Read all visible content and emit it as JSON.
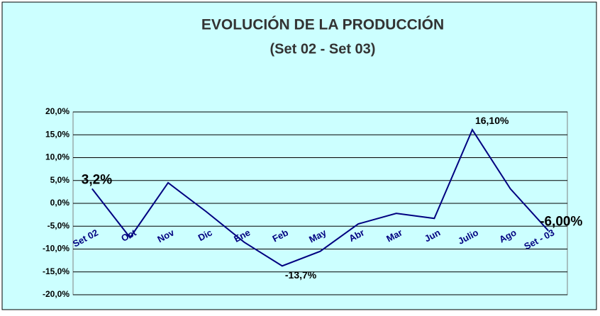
{
  "chart_data": {
    "type": "line",
    "title": "EVOLUCIÓN   DE LA  PRODUCCIÓN",
    "subtitle": "(Set 02 - Set 03)",
    "categories": [
      "Set 02",
      "Oct",
      "Nov",
      "Dic",
      "Ene",
      "Feb",
      "May",
      "Abr",
      "Mar",
      "Jun",
      "Julio",
      "Ago",
      "Set - 03"
    ],
    "series": [
      {
        "color": "#000080",
        "values": [
          3.2,
          -7.5,
          4.5,
          -1.8,
          -8.5,
          -13.7,
          -10.5,
          -4.5,
          -2.2,
          -3.3,
          16.1,
          3.2,
          -6.0
        ],
        "value_labels": [
          "3,2%",
          null,
          null,
          null,
          null,
          "-13,7%",
          null,
          null,
          null,
          null,
          "16,10%",
          null,
          "-6,00%"
        ]
      }
    ],
    "ylim": [
      -20,
      20
    ],
    "yticks": [
      {
        "value": -20,
        "label": "-20,0%"
      },
      {
        "value": -15,
        "label": "-15,0%"
      },
      {
        "value": -10,
        "label": "-10,0%"
      },
      {
        "value": -5,
        "label": "-5,0%"
      },
      {
        "value": 0,
        "label": "0,0%"
      },
      {
        "value": 5,
        "label": "5,0%"
      },
      {
        "value": 10,
        "label": "10,0%"
      },
      {
        "value": 15,
        "label": "15,0%"
      },
      {
        "value": 20,
        "label": "20,0%"
      }
    ],
    "grid": true
  }
}
